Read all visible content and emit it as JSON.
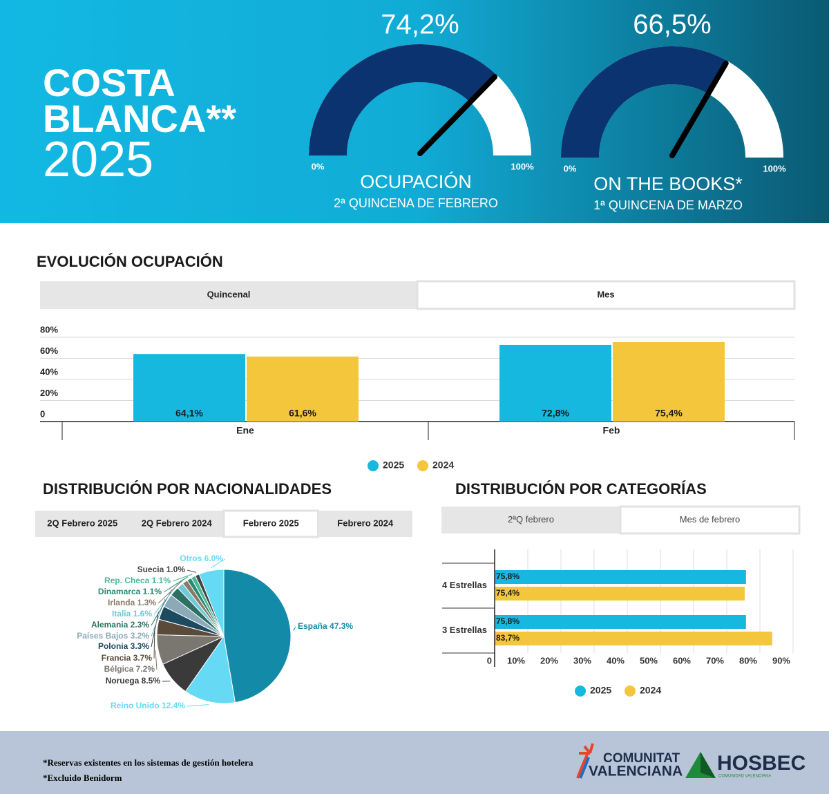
{
  "header": {
    "title": [
      "COSTA",
      "BLANCA**",
      "2025"
    ]
  },
  "chart_data": [
    {
      "type": "gauge",
      "title": "OCUPACIÓN",
      "subtitle": "2ª QUINCENA DE FEBRERO",
      "value": 74.2,
      "value_label": "74,2%",
      "ylim": [
        0,
        100
      ],
      "yticks": [
        {
          "value": 0,
          "label": "0%"
        },
        {
          "value": 100,
          "label": "100%"
        }
      ],
      "color": "#0b3370",
      "track_color": "#ffffff"
    },
    {
      "type": "gauge",
      "title": "ON THE BOOKS*",
      "subtitle": "1ª QUINCENA DE MARZO",
      "value": 66.5,
      "value_label": "66,5%",
      "ylim": [
        0,
        100
      ],
      "yticks": [
        {
          "value": 0,
          "label": "0%"
        },
        {
          "value": 100,
          "label": "100%"
        }
      ],
      "color": "#0b3370",
      "track_color": "#ffffff"
    },
    {
      "type": "bar",
      "title": "EVOLUCIÓN OCUPACIÓN",
      "tabs": [
        "Quincenal",
        "Mes"
      ],
      "active_tab": 1,
      "categories": [
        "Ene",
        "Feb"
      ],
      "series": [
        {
          "name": "2025",
          "color": "#17b8e0",
          "values": [
            64.1,
            72.8
          ],
          "value_labels": [
            "64,1%",
            "72,8%"
          ]
        },
        {
          "name": "2024",
          "color": "#f4c63b",
          "values": [
            61.6,
            75.4
          ],
          "value_labels": [
            "61,6%",
            "75,4%"
          ]
        }
      ],
      "ylim": [
        0,
        80
      ],
      "yticks": [
        0,
        {
          "value": 20,
          "label": "20%"
        },
        {
          "value": 40,
          "label": "40%"
        },
        {
          "value": 60,
          "label": "60%"
        },
        {
          "value": 80,
          "label": "80%"
        }
      ],
      "grid": true
    },
    {
      "type": "pie",
      "title": "DISTRIBUCIÓN POR NACIONALIDADES",
      "tabs": [
        "2Q Febrero 2025",
        "2Q Febrero 2024",
        "Febrero 2025",
        "Febrero 2024"
      ],
      "active_tab": 2,
      "categories": [
        "España",
        "Reino Unido",
        "Noruega",
        "Bélgica",
        "Francia",
        "Polonia",
        "Países Bajos",
        "Alemania",
        "Italia",
        "Irlanda",
        "Dinamarca",
        "Rep. Checa",
        "Suecia",
        "Otros"
      ],
      "values": [
        47.3,
        12.4,
        8.5,
        7.2,
        3.7,
        3.3,
        3.2,
        2.3,
        1.6,
        1.3,
        1.1,
        1.1,
        1.0,
        6.0
      ],
      "value_labels": [
        "47.3%",
        "12.4%",
        "8.5%",
        "7.2%",
        "3.7%",
        "3.3%",
        "3.2%",
        "2.3%",
        "1.6%",
        "1.3%",
        "1.1%",
        "1.1%",
        "1.0%",
        "6.0%"
      ],
      "colors": [
        "#138aa8",
        "#66d9f5",
        "#3a3a3a",
        "#7a7670",
        "#5a4a3a",
        "#1c4a5e",
        "#8aaab8",
        "#2f6e63",
        "#6fc9d6",
        "#8a7a6a",
        "#2a8a70",
        "#4ab89a",
        "#444444",
        "#66d9f5"
      ]
    },
    {
      "type": "bar",
      "orientation": "horizontal",
      "title": "DISTRIBUCIÓN POR CATEGORÍAS",
      "tabs": [
        "2ªQ febrero",
        "Mes de febrero"
      ],
      "active_tab": 1,
      "categories": [
        "4 Estrellas",
        "3 Estrellas"
      ],
      "series": [
        {
          "name": "2025",
          "color": "#17b8e0",
          "values": [
            75.8,
            75.8
          ],
          "value_labels": [
            "75,8%",
            "75,8%"
          ]
        },
        {
          "name": "2024",
          "color": "#f4c63b",
          "values": [
            75.4,
            83.7
          ],
          "value_labels": [
            "75,4%",
            "83,7%"
          ]
        }
      ],
      "xlim": [
        0,
        90
      ],
      "xticks": [
        0,
        {
          "value": 10,
          "label": "10%"
        },
        {
          "value": 20,
          "label": "20%"
        },
        {
          "value": 30,
          "label": "30%"
        },
        {
          "value": 40,
          "label": "40%"
        },
        {
          "value": 50,
          "label": "50%"
        },
        {
          "value": 60,
          "label": "60%"
        },
        {
          "value": 70,
          "label": "70%"
        },
        {
          "value": 80,
          "label": "80%"
        },
        {
          "value": 90,
          "label": "90%"
        }
      ],
      "grid": true
    }
  ],
  "footer": {
    "notes": [
      "*Reservas existentes en los sistemas de gestión hotelera",
      "*Excluido Benidorm"
    ],
    "logo_1": [
      "COMUNITAT",
      "VALENCIANA"
    ],
    "logo_2": {
      "name": "HOSBEC",
      "tagline": "COMUNIDAD VALENCIANA"
    }
  }
}
